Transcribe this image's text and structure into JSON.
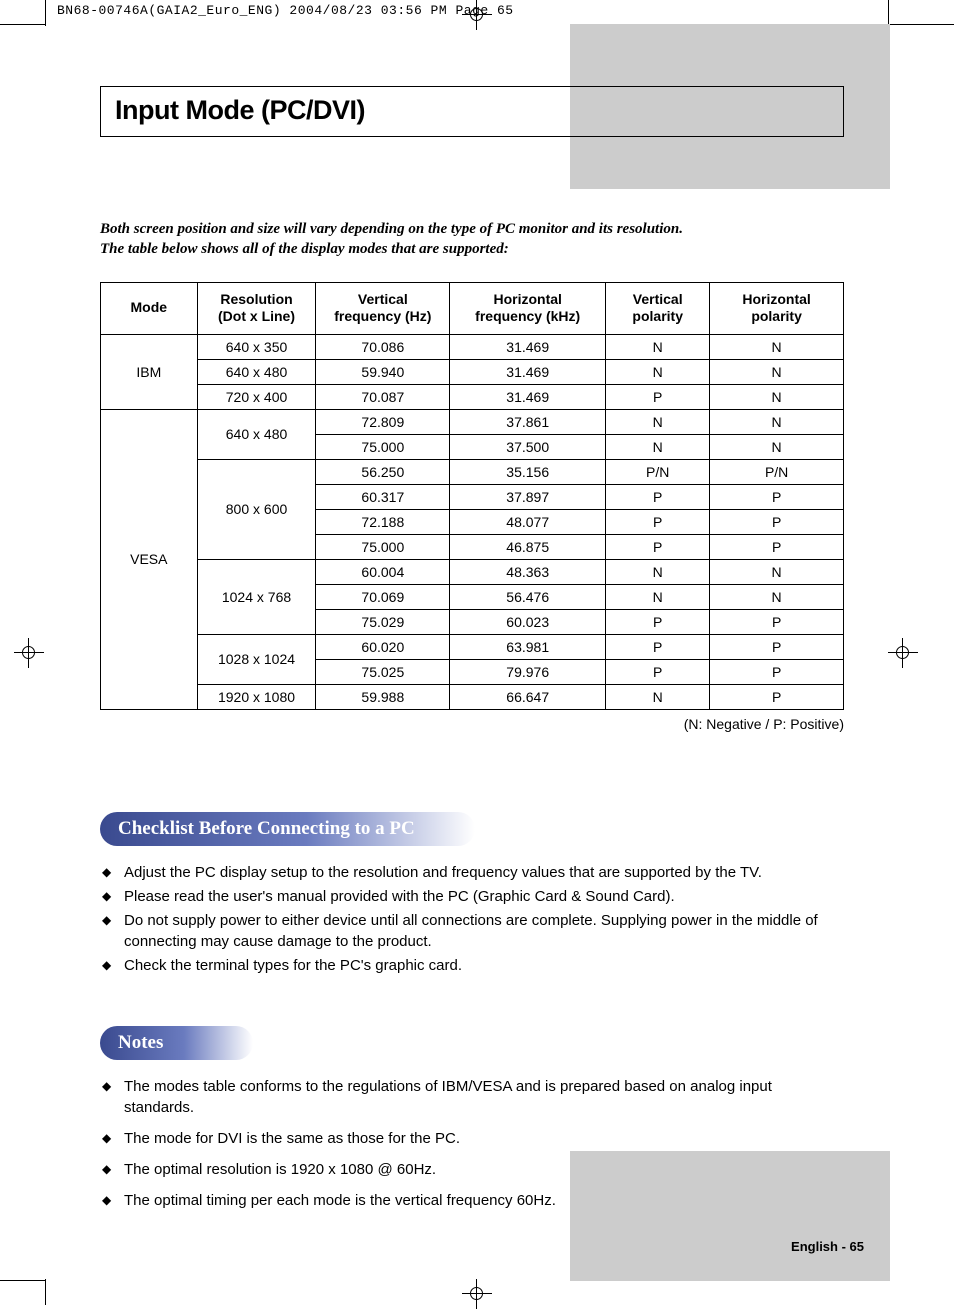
{
  "header": "BN68-00746A(GAIA2_Euro_ENG)  2004/08/23  03:56 PM  Page 65",
  "title": "Input Mode (PC/DVI)",
  "intro_l1": "Both screen position and size will vary depending on the type of PC monitor and its resolution.",
  "intro_l2": "The table below shows all of the display modes that are supported:",
  "table": {
    "headers": [
      "Mode",
      "Resolution\n(Dot x Line)",
      "Vertical\nfrequency (Hz)",
      "Horizontal\nfrequency (kHz)",
      "Vertical\npolarity",
      "Horizontal\npolarity"
    ],
    "col_widths": [
      "13%",
      "16%",
      "18%",
      "21%",
      "14%",
      "18%"
    ],
    "groups": [
      {
        "mode": "IBM",
        "res_groups": [
          {
            "res": "640 x 350",
            "rows": [
              [
                "70.086",
                "31.469",
                "N",
                "N"
              ]
            ]
          },
          {
            "res": "640 x 480",
            "rows": [
              [
                "59.940",
                "31.469",
                "N",
                "N"
              ]
            ]
          },
          {
            "res": "720 x 400",
            "rows": [
              [
                "70.087",
                "31.469",
                "P",
                "N"
              ]
            ]
          }
        ]
      },
      {
        "mode": "VESA",
        "res_groups": [
          {
            "res": "640 x 480",
            "rows": [
              [
                "72.809",
                "37.861",
                "N",
                "N"
              ],
              [
                "75.000",
                "37.500",
                "N",
                "N"
              ]
            ]
          },
          {
            "res": "800 x 600",
            "rows": [
              [
                "56.250",
                "35.156",
                "P/N",
                "P/N"
              ],
              [
                "60.317",
                "37.897",
                "P",
                "P"
              ],
              [
                "72.188",
                "48.077",
                "P",
                "P"
              ],
              [
                "75.000",
                "46.875",
                "P",
                "P"
              ]
            ]
          },
          {
            "res": "1024 x 768",
            "rows": [
              [
                "60.004",
                "48.363",
                "N",
                "N"
              ],
              [
                "70.069",
                "56.476",
                "N",
                "N"
              ],
              [
                "75.029",
                "60.023",
                "P",
                "P"
              ]
            ]
          },
          {
            "res": "1028 x 1024",
            "rows": [
              [
                "60.020",
                "63.981",
                "P",
                "P"
              ],
              [
                "75.025",
                "79.976",
                "P",
                "P"
              ]
            ]
          },
          {
            "res": "1920 x 1080",
            "rows": [
              [
                "59.988",
                "66.647",
                "N",
                "P"
              ]
            ]
          }
        ]
      }
    ]
  },
  "legend": "(N: Negative / P: Positive)",
  "checklist_title": "Checklist Before Connecting to a PC",
  "checklist": [
    "Adjust the PC display setup to the resolution and frequency values that are supported by the TV.",
    "Please read the user's manual provided with the PC (Graphic Card & Sound Card).",
    "Do not supply power to either device until all connections are complete. Supplying power in the middle of connecting may cause damage to the product.",
    "Check the terminal types for the PC's graphic card."
  ],
  "notes_title": "Notes",
  "notes": [
    "The modes table conforms to the regulations of IBM/VESA and is prepared based on analog input standards.",
    "The mode for DVI is the same as those for the PC.",
    "The optimal resolution is 1920 x 1080 @ 60Hz.",
    "The optimal timing per each mode is the vertical frequency 60Hz."
  ],
  "footer": "English - 65"
}
